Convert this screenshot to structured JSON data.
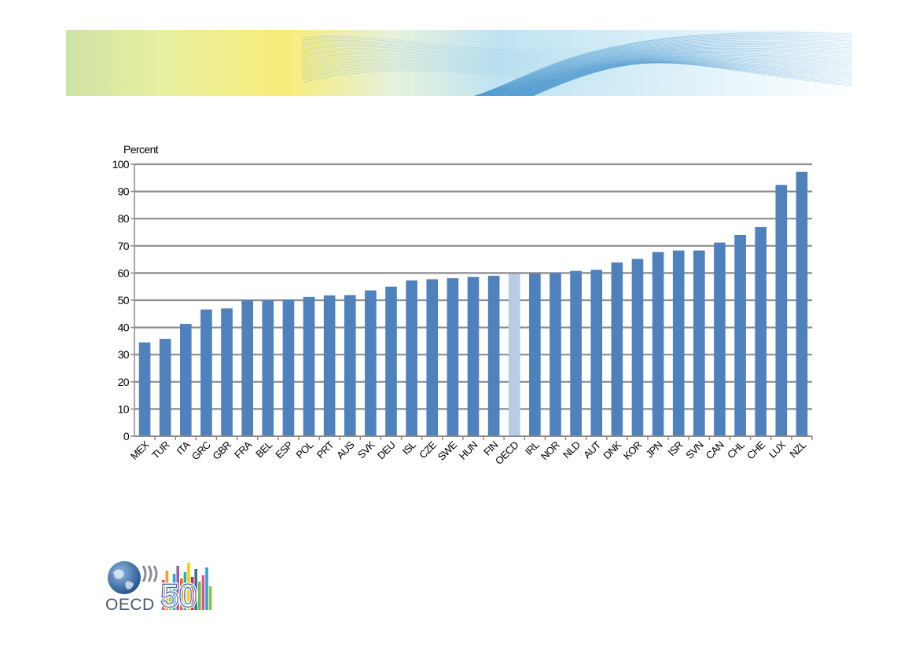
{
  "logo": {
    "wordmark": "OECD",
    "anniversary": "50"
  },
  "chart_data": {
    "type": "bar",
    "ylabel": "Percent",
    "ylim": [
      0,
      100
    ],
    "yticks": [
      0,
      10,
      20,
      30,
      40,
      50,
      60,
      70,
      80,
      90,
      100
    ],
    "grid": true,
    "categories": [
      "MEX",
      "TUR",
      "ITA",
      "GRC",
      "GBR",
      "FRA",
      "BEL",
      "ESP",
      "POL",
      "PRT",
      "AUS",
      "SVK",
      "DEU",
      "ISL",
      "CZE",
      "SWE",
      "HUN",
      "FIN",
      "OECD",
      "IRL",
      "NOR",
      "NLD",
      "AUT",
      "DNK",
      "KOR",
      "JPN",
      "ISR",
      "SVN",
      "CAN",
      "CHL",
      "CHE",
      "LUX",
      "NZL"
    ],
    "values": [
      34.5,
      35.8,
      41.3,
      46.6,
      47.0,
      50.0,
      50.0,
      50.3,
      51.2,
      51.8,
      51.9,
      53.6,
      55.0,
      57.3,
      57.7,
      58.1,
      58.6,
      59.0,
      59.7,
      59.8,
      60.0,
      60.8,
      61.2,
      63.9,
      65.2,
      67.7,
      68.3,
      68.3,
      71.2,
      74.0,
      76.9,
      92.4,
      97.2
    ],
    "colors": {
      "bar": "#4f81bd",
      "highlight": "#b8cce4",
      "grid": "#8c8c8c"
    },
    "highlight_category": "OECD"
  }
}
